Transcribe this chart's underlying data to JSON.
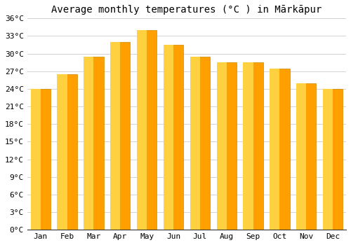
{
  "title": "Average monthly temperatures (°C ) in Mārkāpur",
  "months": [
    "Jan",
    "Feb",
    "Mar",
    "Apr",
    "May",
    "Jun",
    "Jul",
    "Aug",
    "Sep",
    "Oct",
    "Nov",
    "Dec"
  ],
  "values": [
    24.0,
    26.5,
    29.5,
    32.0,
    34.0,
    31.5,
    29.5,
    28.5,
    28.5,
    27.5,
    25.0,
    24.0
  ],
  "bar_color_left": "#FFD040",
  "bar_color_right": "#FFA000",
  "bar_edge_color": "#CC8800",
  "ylim": [
    0,
    36
  ],
  "yticks": [
    0,
    3,
    6,
    9,
    12,
    15,
    18,
    21,
    24,
    27,
    30,
    33,
    36
  ],
  "background_color": "#FFFFFF",
  "plot_bg_color": "#FFFFFF",
  "grid_color": "#CCCCCC",
  "title_fontsize": 10,
  "tick_fontsize": 8,
  "font_family": "monospace"
}
